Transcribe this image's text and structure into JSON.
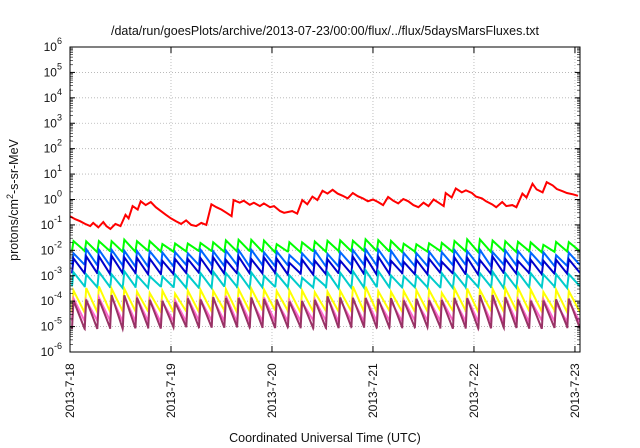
{
  "chart_data": {
    "type": "line",
    "title": "/data/run/goesPlots/archive/2013-07-23/00:00/flux/../flux/5daysMarsFluxes.txt",
    "xlabel": "Coordinated Universal Time (UTC)",
    "ylabel_parts": [
      "protons/cm",
      "2",
      "-s-sr-MeV"
    ],
    "x_ticks": [
      "2013-7-18",
      "2013-7-19",
      "2013-7-20",
      "2013-7-21",
      "2013-7-22",
      "2013-7-23"
    ],
    "x_range_days": [
      0,
      5.05
    ],
    "y_scale": "log",
    "ylim": [
      1e-06,
      1000000.0
    ],
    "y_ticks": [
      {
        "base": "10",
        "exp": "-6"
      },
      {
        "base": "10",
        "exp": "-5"
      },
      {
        "base": "10",
        "exp": "-4"
      },
      {
        "base": "10",
        "exp": "-3"
      },
      {
        "base": "10",
        "exp": "-2"
      },
      {
        "base": "10",
        "exp": "-1"
      },
      {
        "base": "10",
        "exp": "0"
      },
      {
        "base": "10",
        "exp": "1"
      },
      {
        "base": "10",
        "exp": "2"
      },
      {
        "base": "10",
        "exp": "3"
      },
      {
        "base": "10",
        "exp": "4"
      },
      {
        "base": "10",
        "exp": "5"
      },
      {
        "base": "10",
        "exp": "6"
      }
    ],
    "grid": true,
    "series": [
      {
        "color": "#ff0000",
        "x": [
          0,
          0.05,
          0.1,
          0.15,
          0.2,
          0.23,
          0.28,
          0.33,
          0.36,
          0.4,
          0.45,
          0.5,
          0.55,
          0.58,
          0.62,
          0.67,
          0.7,
          0.75,
          0.8,
          0.85,
          0.9,
          0.95,
          1.0,
          1.05,
          1.1,
          1.15,
          1.2,
          1.25,
          1.3,
          1.35,
          1.4,
          1.45,
          1.5,
          1.55,
          1.6,
          1.62,
          1.68,
          1.72,
          1.78,
          1.82,
          1.88,
          1.92,
          1.98,
          2.02,
          2.08,
          2.12,
          2.2,
          2.25,
          2.3,
          2.35,
          2.4,
          2.45,
          2.5,
          2.55,
          2.6,
          2.65,
          2.7,
          2.75,
          2.8,
          2.85,
          2.9,
          2.95,
          3.0,
          3.05,
          3.1,
          3.15,
          3.2,
          3.25,
          3.3,
          3.35,
          3.4,
          3.45,
          3.5,
          3.55,
          3.6,
          3.65,
          3.7,
          3.72,
          3.78,
          3.82,
          3.88,
          3.92,
          3.98,
          4.02,
          4.08,
          4.12,
          4.18,
          4.22,
          4.28,
          4.32,
          4.38,
          4.42,
          4.48,
          4.52,
          4.58,
          4.62,
          4.68,
          4.72,
          4.78,
          4.82,
          4.88,
          4.92,
          4.98,
          5.03
        ],
        "values": [
          0.22,
          0.17,
          0.14,
          0.11,
          0.09,
          0.12,
          0.08,
          0.13,
          0.09,
          0.07,
          0.11,
          0.09,
          0.25,
          0.18,
          0.55,
          0.4,
          0.85,
          0.6,
          0.8,
          0.5,
          0.35,
          0.25,
          0.18,
          0.14,
          0.11,
          0.15,
          0.1,
          0.09,
          0.12,
          0.1,
          0.65,
          0.5,
          0.4,
          0.3,
          0.22,
          0.95,
          0.75,
          0.9,
          0.62,
          0.75,
          0.55,
          0.7,
          0.5,
          0.55,
          0.35,
          0.3,
          0.35,
          0.28,
          0.95,
          0.65,
          1.3,
          0.95,
          2.2,
          1.7,
          2.4,
          1.7,
          1.4,
          1.1,
          1.8,
          1.35,
          1.1,
          0.85,
          1.0,
          0.8,
          0.6,
          1.25,
          0.9,
          0.7,
          1.05,
          0.85,
          0.6,
          0.5,
          0.75,
          0.55,
          1.0,
          0.75,
          0.55,
          1.8,
          1.2,
          2.7,
          1.9,
          2.3,
          1.8,
          1.3,
          1.1,
          0.85,
          0.65,
          0.5,
          0.8,
          0.55,
          0.6,
          0.5,
          1.7,
          1.2,
          4.2,
          2.5,
          1.9,
          4.8,
          3.6,
          2.6,
          2.1,
          1.8,
          1.6,
          1.4
        ]
      },
      {
        "color": "#00ff00",
        "pattern": "sawtooth",
        "teeth": 40,
        "peak": 0.022,
        "trough": 0.009,
        "drift": 0.15,
        "seed": 11
      },
      {
        "color": "#0066ff",
        "pattern": "sawtooth",
        "teeth": 40,
        "peak": 0.009,
        "trough": 0.0025,
        "drift": 0.2,
        "seed": 23
      },
      {
        "color": "#0000cc",
        "pattern": "sawtooth",
        "teeth": 40,
        "peak": 0.0045,
        "trough": 0.0012,
        "drift": 0.2,
        "seed": 37
      },
      {
        "color": "#00cccc",
        "pattern": "sawtooth",
        "teeth": 40,
        "peak": 0.0012,
        "trough": 0.00035,
        "drift": 0.2,
        "seed": 41
      },
      {
        "color": "#ffff00",
        "pattern": "sawtooth",
        "teeth": 40,
        "peak": 0.00028,
        "trough": 4e-05,
        "drift": 0.2,
        "seed": 53
      },
      {
        "color": "#ff66cc",
        "pattern": "sawtooth",
        "teeth": 40,
        "peak": 0.00012,
        "trough": 1.6e-05,
        "drift": 0.2,
        "seed": 61
      },
      {
        "color": "#993366",
        "pattern": "sawtooth",
        "teeth": 40,
        "peak": 0.00013,
        "trough": 9e-06,
        "drift": 0.2,
        "seed": 71
      }
    ]
  }
}
